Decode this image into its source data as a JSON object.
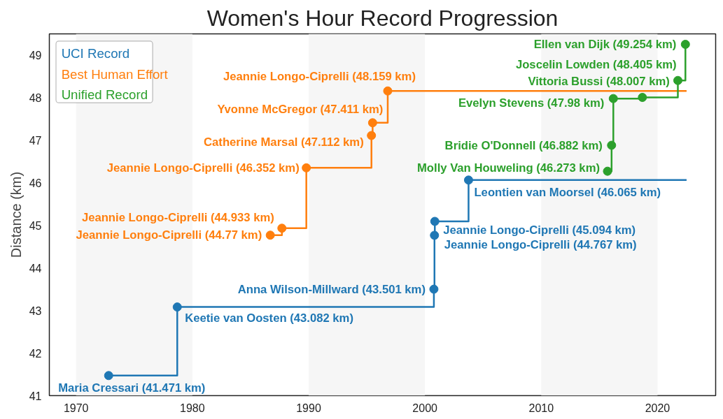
{
  "chart_data": {
    "type": "step",
    "title": "Women's Hour Record Progression",
    "ylabel": "Distance (km)",
    "xlim": [
      1967.7,
      2025
    ],
    "xticks": [
      1970,
      1980,
      1990,
      2000,
      2010,
      2020
    ],
    "ylim": [
      41,
      49.5
    ],
    "yticks": [
      41,
      42,
      43,
      44,
      45,
      46,
      47,
      48,
      49
    ],
    "grid": false,
    "legend": "top left",
    "marker": "circle",
    "bands": [
      {
        "axis": "x",
        "from": 1970,
        "to": 1980,
        "color": "#f6f6f6"
      },
      {
        "axis": "x",
        "from": 1990,
        "to": 2000,
        "color": "#f6f6f6"
      },
      {
        "axis": "x",
        "from": 2010,
        "to": 2020,
        "color": "#f6f6f6"
      }
    ],
    "series": [
      {
        "name": "UCI Record",
        "color": "#1f77b4",
        "x": [
          1972.8,
          1978.7,
          2000.77,
          2000.82,
          2000.85,
          2003.75,
          2022.5
        ],
        "values": [
          41.471,
          43.082,
          43.501,
          44.767,
          45.094,
          46.065,
          46.065
        ],
        "value_labels": [
          "Maria Cressari (41.471 km)",
          "Keetie van Oosten (43.082 km)",
          "Anna Wilson-Millward (43.501 km)",
          "Jeannie Longo-Ciprelli (44.767 km)",
          "Jeannie Longo-Ciprelli (45.094 km)",
          "Leontien van Moorsel (46.065 km)",
          null
        ]
      },
      {
        "name": "Best Human Effort",
        "color": "#ff7f0e",
        "x": [
          1986.7,
          1987.7,
          1989.8,
          1995.4,
          1995.5,
          1996.8,
          2022.5
        ],
        "values": [
          44.77,
          44.933,
          46.352,
          47.112,
          47.411,
          48.159,
          48.159
        ],
        "value_labels": [
          "Jeannie Longo-Ciprelli (44.77 km)",
          "Jeannie Longo-Ciprelli (44.933 km)",
          "Jeannie Longo-Ciprelli (46.352 km)",
          "Catherine Marsal (47.112 km)",
          "Yvonne McGregor (47.411 km)",
          "Jeannie Longo-Ciprelli (48.159 km)",
          null
        ]
      },
      {
        "name": "Unified Record",
        "color": "#2ca02c",
        "x": [
          2015.7,
          2016.05,
          2016.2,
          2018.7,
          2021.75,
          2022.4
        ],
        "values": [
          46.273,
          46.882,
          47.98,
          48.007,
          48.405,
          49.254
        ],
        "value_labels": [
          "Molly Van Houweling (46.273 km)",
          "Bridie O'Donnell (46.882 km)",
          "Evelyn Stevens (47.98 km)",
          "Vittoria Bussi (48.007 km)",
          "Joscelin Lowden (48.405 km)",
          "Ellen van Dijk (49.254 km)"
        ]
      }
    ]
  }
}
